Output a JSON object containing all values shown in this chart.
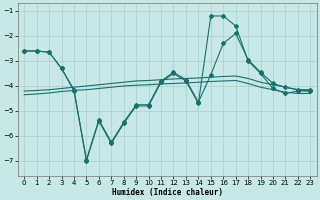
{
  "xlabel": "Humidex (Indice chaleur)",
  "bg_color": "#c8e8e8",
  "grid_color": "#a8cece",
  "line_color": "#1a6e6e",
  "xlim": [
    -0.5,
    23.5
  ],
  "ylim": [
    -7.6,
    -0.7
  ],
  "yticks": [
    -7,
    -6,
    -5,
    -4,
    -3,
    -2,
    -1
  ],
  "xticks": [
    0,
    1,
    2,
    3,
    4,
    5,
    6,
    7,
    8,
    9,
    10,
    11,
    12,
    13,
    14,
    15,
    16,
    17,
    18,
    19,
    20,
    21,
    22,
    23
  ],
  "s1x": [
    0,
    1,
    2,
    3,
    4,
    5,
    6,
    7,
    8,
    9,
    10,
    11,
    12,
    13,
    14,
    15,
    16,
    17,
    18,
    19,
    20,
    21,
    22,
    23
  ],
  "s1y": [
    -2.6,
    -2.6,
    -2.65,
    -3.3,
    -4.2,
    -7.0,
    -5.4,
    -6.3,
    -5.5,
    -4.8,
    -4.8,
    -3.85,
    -3.5,
    -3.8,
    -4.7,
    -1.2,
    -1.2,
    -1.6,
    -3.0,
    -3.5,
    -4.1,
    -4.3,
    -4.2,
    -4.2
  ],
  "s2x": [
    0,
    1,
    2,
    3,
    4,
    5,
    6,
    7,
    8,
    9,
    10,
    11,
    12,
    13,
    14,
    15,
    16,
    17,
    18,
    19,
    20,
    21,
    22,
    23
  ],
  "s2y": [
    -2.6,
    -2.6,
    -2.65,
    -3.3,
    -4.15,
    -6.95,
    -5.35,
    -6.25,
    -5.45,
    -4.75,
    -4.75,
    -3.8,
    -3.45,
    -3.75,
    -4.65,
    -3.55,
    -2.3,
    -1.9,
    -2.95,
    -3.45,
    -3.9,
    -4.05,
    -4.15,
    -4.15
  ],
  "s3x": [
    0,
    1,
    2,
    3,
    4,
    5,
    6,
    7,
    8,
    9,
    10,
    11,
    12,
    13,
    14,
    15,
    16,
    17,
    18,
    19,
    20,
    21,
    22,
    23
  ],
  "s3y": [
    -4.2,
    -4.18,
    -4.15,
    -4.1,
    -4.05,
    -4.0,
    -3.95,
    -3.9,
    -3.85,
    -3.8,
    -3.78,
    -3.75,
    -3.72,
    -3.7,
    -3.68,
    -3.65,
    -3.62,
    -3.6,
    -3.7,
    -3.85,
    -3.95,
    -4.05,
    -4.15,
    -4.2
  ],
  "s4x": [
    0,
    1,
    2,
    3,
    4,
    5,
    6,
    7,
    8,
    9,
    10,
    11,
    12,
    13,
    14,
    15,
    16,
    17,
    18,
    19,
    20,
    21,
    22,
    23
  ],
  "s4y": [
    -4.35,
    -4.32,
    -4.28,
    -4.22,
    -4.18,
    -4.15,
    -4.1,
    -4.05,
    -4.0,
    -3.97,
    -3.95,
    -3.92,
    -3.9,
    -3.88,
    -3.85,
    -3.82,
    -3.8,
    -3.78,
    -3.9,
    -4.05,
    -4.15,
    -4.25,
    -4.3,
    -4.3
  ]
}
